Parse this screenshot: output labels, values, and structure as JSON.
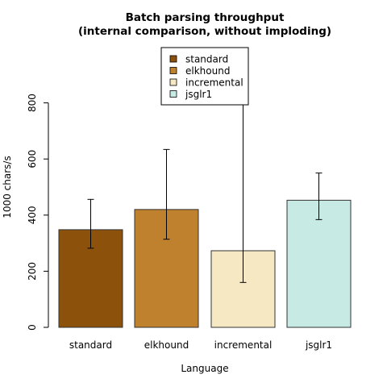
{
  "chart_data": {
    "type": "bar",
    "title_line1": "Batch parsing throughput",
    "title_line2": "(internal comparison, without imploding)",
    "xlabel": "Language",
    "ylabel": "1000 chars/s",
    "ylim": [
      0,
      1000
    ],
    "yticks": [
      "0",
      "200",
      "400",
      "600",
      "800"
    ],
    "categories": [
      "standard",
      "elkhound",
      "incremental",
      "jsglr1"
    ],
    "values": [
      348,
      420,
      273,
      453
    ],
    "error_low": [
      282,
      314,
      160,
      384
    ],
    "error_high": [
      456,
      634,
      990,
      550
    ],
    "colors": [
      "#8c510a",
      "#bf812d",
      "#f6e8c3",
      "#c7eae5"
    ],
    "legend": {
      "position": "top-center",
      "entries": [
        "standard",
        "elkhound",
        "incremental",
        "jsglr1"
      ]
    },
    "grid": false
  }
}
